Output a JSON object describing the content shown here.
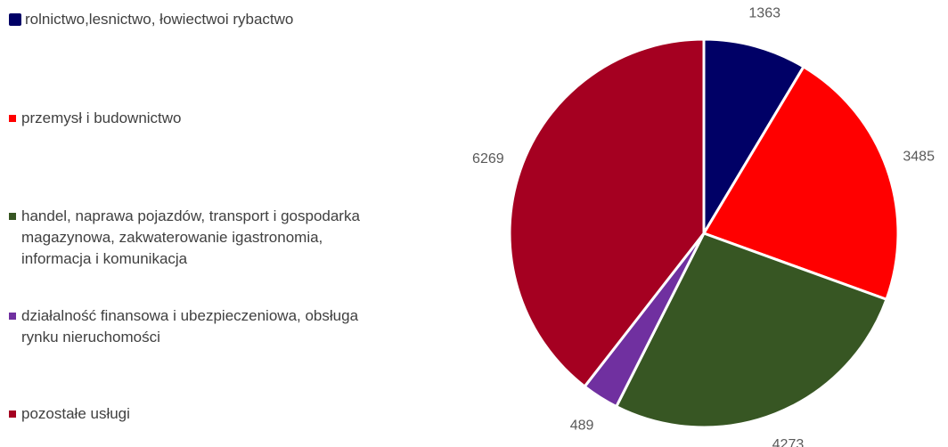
{
  "chart_data": {
    "type": "pie",
    "categories": [
      "rolnictwo,lesnictwo, łowiectwoi rybactwo",
      "przemysł i budownictwo",
      "handel, naprawa pojazdów, transport i gospodarka magazynowa, zakwaterowanie igastronomia, informacja i komunikacja",
      "działalność finansowa i ubezpieczeniowa, obsługa rynku nieruchomości",
      "pozostałe usługi"
    ],
    "values": [
      1363,
      3485,
      4273,
      489,
      6269
    ],
    "colors": [
      "#000066",
      "#ff0000",
      "#375623",
      "#7030a0",
      "#a50021"
    ],
    "legend": "left"
  }
}
